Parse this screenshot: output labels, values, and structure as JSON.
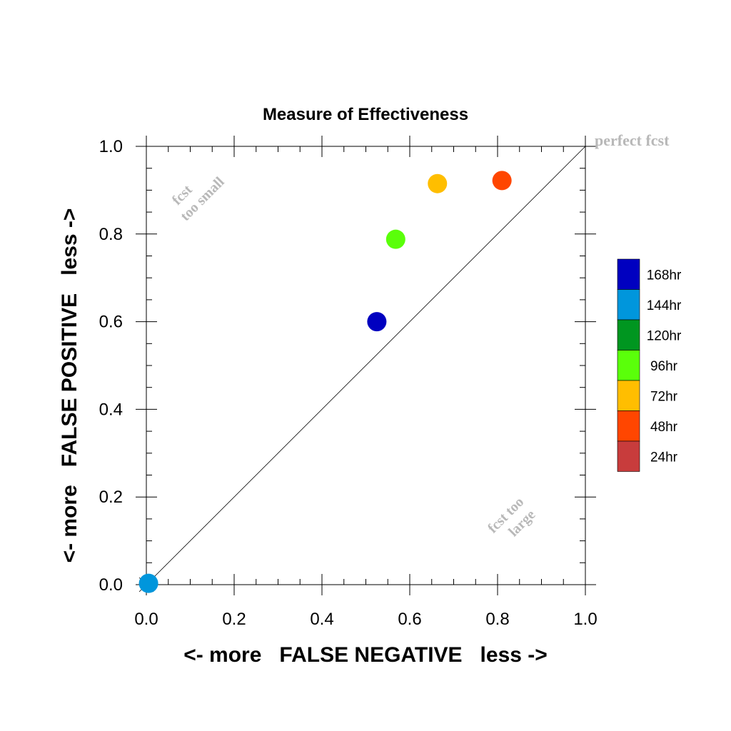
{
  "chart_data": {
    "type": "scatter",
    "title": "Measure of Effectiveness",
    "xlabel": "<- more   FALSE NEGATIVE   less ->",
    "ylabel": "<- more   FALSE POSITIVE   less ->",
    "xlim": [
      0,
      1
    ],
    "ylim": [
      0,
      1
    ],
    "x_ticks": [
      "0.0",
      "0.2",
      "0.4",
      "0.6",
      "0.8",
      "1.0"
    ],
    "y_ticks": [
      "0.0",
      "0.2",
      "0.4",
      "0.6",
      "0.8",
      "1.0"
    ],
    "diagonal": {
      "from": [
        0,
        0
      ],
      "to": [
        1,
        1
      ]
    },
    "annotations": {
      "perfect": "perfect fcst",
      "too_small": [
        "fcst",
        "too small"
      ],
      "too_large": [
        "fcst too",
        "large"
      ]
    },
    "legend": {
      "placement": "right",
      "entries": [
        {
          "label": "168hr",
          "color": "#0000c0"
        },
        {
          "label": "144hr",
          "color": "#0096dc"
        },
        {
          "label": "120hr",
          "color": "#009620"
        },
        {
          "label": "96hr",
          "color": "#5aff0a"
        },
        {
          "label": "72hr",
          "color": "#ffbe00"
        },
        {
          "label": "48hr",
          "color": "#ff4600"
        },
        {
          "label": "24hr",
          "color": "#c83c3c"
        }
      ]
    },
    "points": [
      {
        "series": "168hr",
        "x": 0.525,
        "y": 0.6,
        "color": "#0000c0"
      },
      {
        "series": "144hr",
        "x": 0.005,
        "y": 0.003,
        "color": "#0096dc"
      },
      {
        "series": "96hr",
        "x": 0.568,
        "y": 0.788,
        "color": "#5aff0a"
      },
      {
        "series": "72hr",
        "x": 0.663,
        "y": 0.915,
        "color": "#ffbe00"
      },
      {
        "series": "48hr",
        "x": 0.81,
        "y": 0.922,
        "color": "#ff4600"
      }
    ]
  }
}
